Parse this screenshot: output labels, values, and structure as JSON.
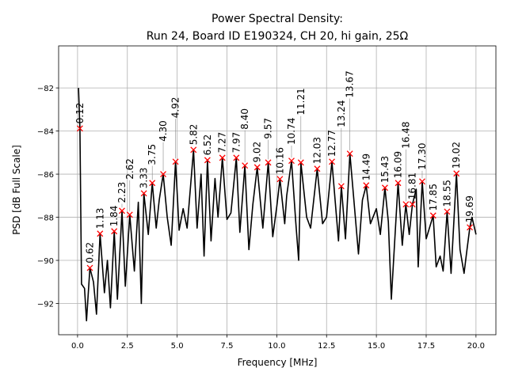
{
  "chart_data": {
    "type": "line",
    "title": "Power Spectral Density:",
    "subtitle": "Run 24, Board ID E190324, CH 20, hi gain, 25Ω",
    "xlabel": "Frequency [MHz]",
    "ylabel": "PSD [dB Full Scale]",
    "xlim": [
      -0.95,
      21.0
    ],
    "ylim": [
      -93.45,
      -80.05
    ],
    "xticks": [
      0,
      2.5,
      5,
      7.5,
      10,
      12.5,
      15,
      17.5,
      20
    ],
    "xtick_labels": [
      "0.0",
      "2.5",
      "5.0",
      "7.5",
      "10.0",
      "12.5",
      "15.0",
      "17.5",
      "20.0"
    ],
    "yticks": [
      -82,
      -84,
      -86,
      -88,
      -90,
      -92
    ],
    "ytick_labels": [
      "−82",
      "−84",
      "−86",
      "−88",
      "−90",
      "−92"
    ],
    "grid": true,
    "line_color": "#000000",
    "marker_color": "#ff0000",
    "trace": {
      "x": [
        0.05,
        0.12,
        0.2,
        0.35,
        0.45,
        0.62,
        0.8,
        0.95,
        1.13,
        1.35,
        1.5,
        1.65,
        1.84,
        2.0,
        2.23,
        2.4,
        2.62,
        2.85,
        3.05,
        3.2,
        3.33,
        3.55,
        3.75,
        3.95,
        4.1,
        4.3,
        4.5,
        4.7,
        4.92,
        5.1,
        5.3,
        5.5,
        5.82,
        6.0,
        6.2,
        6.35,
        6.52,
        6.7,
        6.9,
        7.05,
        7.27,
        7.5,
        7.7,
        7.97,
        8.15,
        8.4,
        8.6,
        8.8,
        9.02,
        9.3,
        9.57,
        9.8,
        10.0,
        10.16,
        10.4,
        10.5,
        10.74,
        10.95,
        11.1,
        11.21,
        11.5,
        11.7,
        12.03,
        12.3,
        12.5,
        12.77,
        13.0,
        13.1,
        13.24,
        13.45,
        13.67,
        13.9,
        14.1,
        14.3,
        14.49,
        14.7,
        15.0,
        15.2,
        15.43,
        15.6,
        15.75,
        16.09,
        16.3,
        16.48,
        16.65,
        16.81,
        17.0,
        17.1,
        17.3,
        17.5,
        17.85,
        18.0,
        18.2,
        18.35,
        18.55,
        18.75,
        19.02,
        19.2,
        19.4,
        19.55,
        19.69,
        19.8,
        20.0
      ],
      "y": [
        -82.0,
        -83.9,
        -91.1,
        -91.3,
        -92.8,
        -90.35,
        -91.0,
        -92.5,
        -88.76,
        -91.5,
        -90.0,
        -92.2,
        -88.65,
        -91.8,
        -87.7,
        -91.2,
        -87.88,
        -90.5,
        -87.3,
        -92.0,
        -86.89,
        -88.8,
        -86.41,
        -88.5,
        -87.2,
        -86.0,
        -88.0,
        -89.3,
        -85.42,
        -88.6,
        -87.6,
        -88.5,
        -84.87,
        -88.5,
        -86.0,
        -89.8,
        -85.35,
        -89.1,
        -86.2,
        -88.0,
        -85.24,
        -88.1,
        -87.8,
        -85.24,
        -88.7,
        -85.6,
        -89.5,
        -87.4,
        -85.68,
        -88.5,
        -85.46,
        -88.9,
        -87.5,
        -86.23,
        -88.3,
        -87.0,
        -85.38,
        -88.2,
        -90.0,
        -85.46,
        -88.0,
        -88.5,
        -85.75,
        -88.3,
        -88.0,
        -85.42,
        -88.0,
        -89.1,
        -86.56,
        -89.0,
        -85.05,
        -87.5,
        -89.7,
        -87.2,
        -86.52,
        -88.3,
        -87.6,
        -88.8,
        -86.63,
        -88.2,
        -91.8,
        -86.41,
        -89.3,
        -87.4,
        -88.8,
        -87.4,
        -86.7,
        -90.3,
        -86.34,
        -89.0,
        -87.92,
        -90.3,
        -89.8,
        -90.5,
        -87.74,
        -90.6,
        -85.97,
        -89.5,
        -90.6,
        -89.5,
        -88.47,
        -88.0,
        -88.8
      ]
    },
    "peaks": [
      {
        "label": "0.12",
        "x": 0.12,
        "y": -83.88
      },
      {
        "label": "0.62",
        "x": 0.62,
        "y": -90.35
      },
      {
        "label": "1.13",
        "x": 1.13,
        "y": -88.76
      },
      {
        "label": "1.84",
        "x": 1.84,
        "y": -88.65
      },
      {
        "label": "2.23",
        "x": 2.23,
        "y": -87.7
      },
      {
        "label": "2.62",
        "x": 2.62,
        "y": -87.88
      },
      {
        "label": "3.33",
        "x": 3.33,
        "y": -86.89
      },
      {
        "label": "3.75",
        "x": 3.75,
        "y": -86.41
      },
      {
        "label": "4.30",
        "x": 4.3,
        "y": -86.0
      },
      {
        "label": "4.92",
        "x": 4.92,
        "y": -85.42
      },
      {
        "label": "5.82",
        "x": 5.82,
        "y": -84.87
      },
      {
        "label": "6.52",
        "x": 6.52,
        "y": -85.35
      },
      {
        "label": "7.27",
        "x": 7.27,
        "y": -85.24
      },
      {
        "label": "7.97",
        "x": 7.97,
        "y": -85.24
      },
      {
        "label": "8.40",
        "x": 8.4,
        "y": -85.6
      },
      {
        "label": "9.02",
        "x": 9.02,
        "y": -85.68
      },
      {
        "label": "9.57",
        "x": 9.57,
        "y": -85.46
      },
      {
        "label": "10.16",
        "x": 10.16,
        "y": -86.23
      },
      {
        "label": "10.74",
        "x": 10.74,
        "y": -85.38
      },
      {
        "label": "11.21",
        "x": 11.21,
        "y": -85.46
      },
      {
        "label": "12.03",
        "x": 12.03,
        "y": -85.75
      },
      {
        "label": "12.77",
        "x": 12.77,
        "y": -85.42
      },
      {
        "label": "13.24",
        "x": 13.24,
        "y": -86.56
      },
      {
        "label": "13.67",
        "x": 13.67,
        "y": -85.05
      },
      {
        "label": "14.49",
        "x": 14.49,
        "y": -86.52
      },
      {
        "label": "15.43",
        "x": 15.43,
        "y": -86.63
      },
      {
        "label": "16.09",
        "x": 16.09,
        "y": -86.41
      },
      {
        "label": "16.48",
        "x": 16.48,
        "y": -87.4
      },
      {
        "label": "16.81",
        "x": 16.81,
        "y": -87.4
      },
      {
        "label": "17.30",
        "x": 17.3,
        "y": -86.34
      },
      {
        "label": "17.85",
        "x": 17.85,
        "y": -87.92
      },
      {
        "label": "18.55",
        "x": 18.55,
        "y": -87.74
      },
      {
        "label": "19.02",
        "x": 19.02,
        "y": -85.97
      },
      {
        "label": "19.69",
        "x": 19.69,
        "y": -88.47
      }
    ]
  }
}
